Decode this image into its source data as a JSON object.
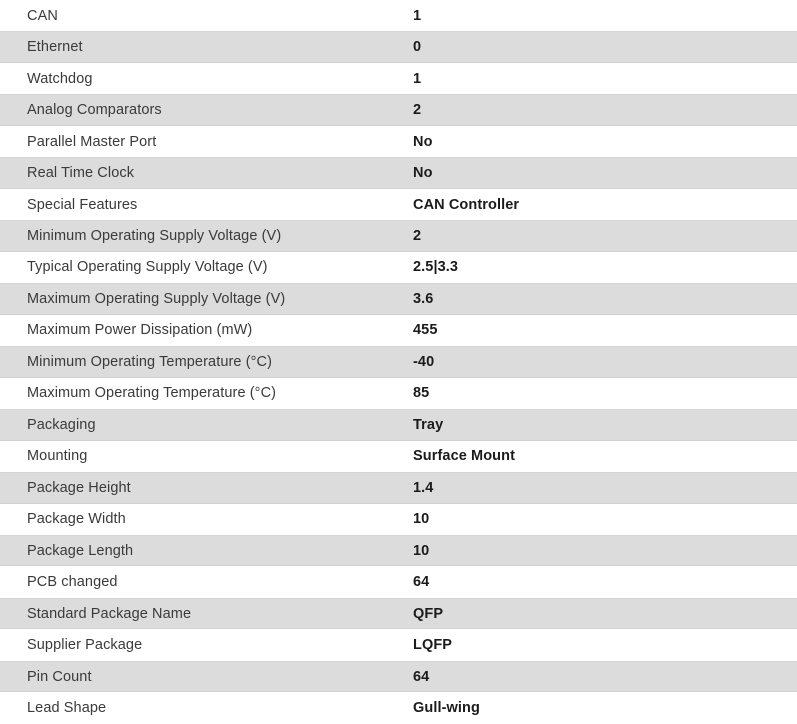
{
  "colors": {
    "stripe_background": "#dcdcdc",
    "row_background": "#ffffff",
    "label_text": "#3a3a3a",
    "value_text": "#1b1b1b"
  },
  "spec_table": {
    "rows": [
      {
        "label": "CAN",
        "value": "1"
      },
      {
        "label": "Ethernet",
        "value": "0"
      },
      {
        "label": "Watchdog",
        "value": "1"
      },
      {
        "label": "Analog Comparators",
        "value": "2"
      },
      {
        "label": "Parallel Master Port",
        "value": "No"
      },
      {
        "label": "Real Time Clock",
        "value": "No"
      },
      {
        "label": "Special Features",
        "value": "CAN Controller"
      },
      {
        "label": "Minimum Operating Supply Voltage (V)",
        "value": "2"
      },
      {
        "label": "Typical Operating Supply Voltage (V)",
        "value": "2.5|3.3"
      },
      {
        "label": "Maximum Operating Supply Voltage (V)",
        "value": "3.6"
      },
      {
        "label": "Maximum Power Dissipation (mW)",
        "value": "455"
      },
      {
        "label": "Minimum Operating Temperature (°C)",
        "value": "-40"
      },
      {
        "label": "Maximum Operating Temperature (°C)",
        "value": "85"
      },
      {
        "label": "Packaging",
        "value": "Tray"
      },
      {
        "label": "Mounting",
        "value": "Surface Mount"
      },
      {
        "label": "Package Height",
        "value": "1.4"
      },
      {
        "label": "Package Width",
        "value": "10"
      },
      {
        "label": "Package Length",
        "value": "10"
      },
      {
        "label": "PCB changed",
        "value": "64"
      },
      {
        "label": "Standard Package Name",
        "value": "QFP"
      },
      {
        "label": "Supplier Package",
        "value": "LQFP"
      },
      {
        "label": "Pin Count",
        "value": "64"
      },
      {
        "label": "Lead Shape",
        "value": "Gull-wing"
      }
    ]
  }
}
